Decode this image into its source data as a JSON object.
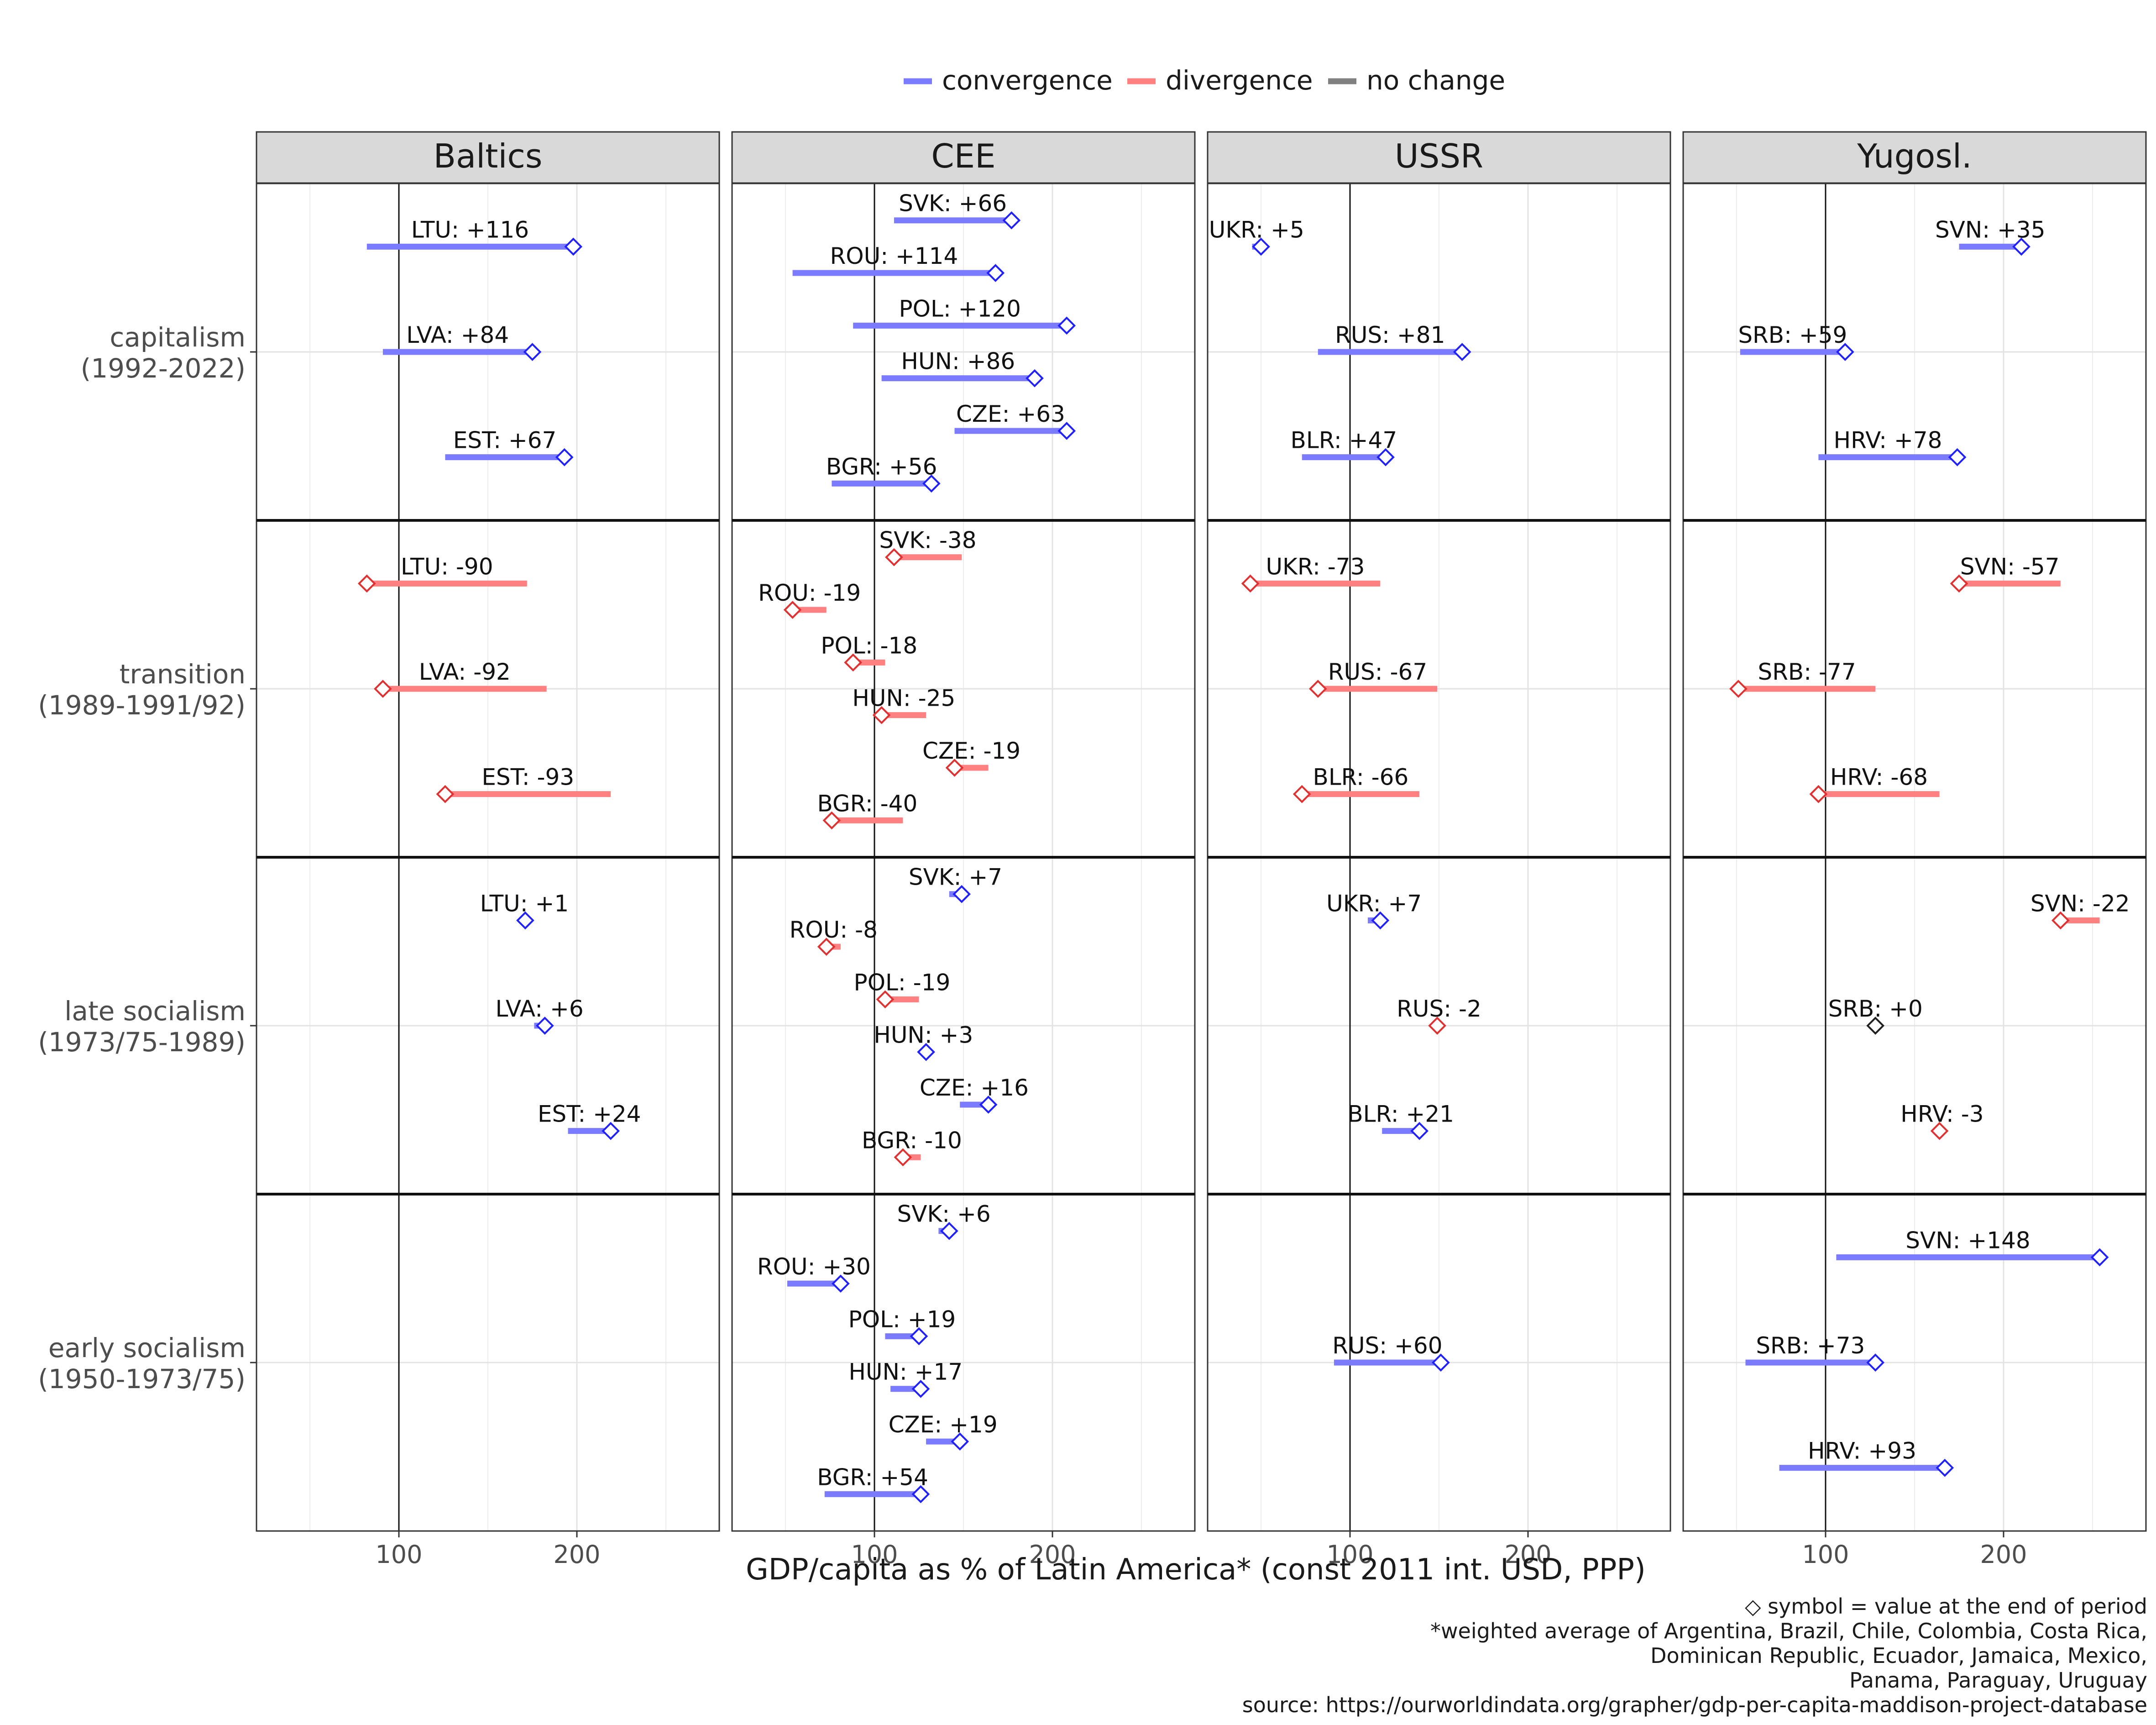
{
  "chart_data": {
    "type": "dumbbell",
    "xlabel": "GDP/capita as % of Latin America* (const 2011 int. USD, PPP)",
    "xticks": [
      100,
      200
    ],
    "xlim": [
      20,
      280
    ],
    "legend": {
      "position": "top",
      "items": [
        {
          "key": "conv",
          "label": "convergence",
          "color": "#7b7bff"
        },
        {
          "key": "div",
          "label": "divergence",
          "color": "#ff8080"
        },
        {
          "key": "none",
          "label": "no change",
          "color": "#808080"
        }
      ]
    },
    "marker_colors": {
      "conv": "#2020ff",
      "div": "#e03030",
      "none": "#202020"
    },
    "footnotes": [
      "◇ symbol = value at the end of period",
      "*weighted average of Argentina, Brazil, Chile, Colombia, Costa Rica,",
      "Dominican Republic, Ecuador, Jamaica, Mexico,",
      "Panama, Paraguay, Uruguay",
      "source: https://ourworldindata.org/grapher/gdp-per-capita-maddison-project-database"
    ],
    "columns": [
      "Baltics",
      "CEE",
      "USSR",
      "Yugosl."
    ],
    "rows": [
      {
        "label1": "capitalism",
        "label2": "(1992-2022)"
      },
      {
        "label1": "transition",
        "label2": "(1989-1991/92)"
      },
      {
        "label1": "late socialism",
        "label2": "(1973/75-1989)"
      },
      {
        "label1": "early socialism",
        "label2": "(1950-1973/75)"
      }
    ],
    "panels": [
      {
        "row": 0,
        "col": 0,
        "items": [
          {
            "label": "LTU: +116",
            "y": 1.5,
            "start": 82,
            "end": 198
          },
          {
            "label": "LVA: +84",
            "y": 0,
            "start": 91,
            "end": 175
          },
          {
            "label": "EST: +67",
            "y": -1.5,
            "start": 126,
            "end": 193
          }
        ]
      },
      {
        "row": 0,
        "col": 1,
        "items": [
          {
            "label": "SVK: +66",
            "y": 1.875,
            "start": 111,
            "end": 177
          },
          {
            "label": "ROU: +114",
            "y": 1.125,
            "start": 54,
            "end": 168
          },
          {
            "label": "POL: +120",
            "y": 0.375,
            "start": 88,
            "end": 208
          },
          {
            "label": "HUN: +86",
            "y": -0.375,
            "start": 104,
            "end": 190
          },
          {
            "label": "CZE: +63",
            "y": -1.125,
            "start": 145,
            "end": 208
          },
          {
            "label": "BGR: +56",
            "y": -1.875,
            "start": 76,
            "end": 132
          }
        ]
      },
      {
        "row": 0,
        "col": 2,
        "items": [
          {
            "label": "UKR: +5",
            "y": 1.5,
            "start": 45,
            "end": 50
          },
          {
            "label": "RUS: +81",
            "y": 0,
            "start": 82,
            "end": 163
          },
          {
            "label": "BLR: +47",
            "y": -1.5,
            "start": 73,
            "end": 120
          }
        ]
      },
      {
        "row": 0,
        "col": 3,
        "items": [
          {
            "label": "SVN: +35",
            "y": 1.5,
            "start": 175,
            "end": 210
          },
          {
            "label": "SRB: +59",
            "y": 0,
            "start": 52,
            "end": 111
          },
          {
            "label": "HRV: +78",
            "y": -1.5,
            "start": 96,
            "end": 174
          }
        ]
      },
      {
        "row": 1,
        "col": 0,
        "items": [
          {
            "label": "LTU: -90",
            "y": 1.5,
            "start": 172,
            "end": 82
          },
          {
            "label": "LVA: -92",
            "y": 0,
            "start": 183,
            "end": 91
          },
          {
            "label": "EST: -93",
            "y": -1.5,
            "start": 219,
            "end": 126
          }
        ]
      },
      {
        "row": 1,
        "col": 1,
        "items": [
          {
            "label": "SVK: -38",
            "y": 1.875,
            "start": 149,
            "end": 111
          },
          {
            "label": "ROU: -19",
            "y": 1.125,
            "start": 73,
            "end": 54
          },
          {
            "label": "POL: -18",
            "y": 0.375,
            "start": 106,
            "end": 88
          },
          {
            "label": "HUN: -25",
            "y": -0.375,
            "start": 129,
            "end": 104
          },
          {
            "label": "CZE: -19",
            "y": -1.125,
            "start": 164,
            "end": 145
          },
          {
            "label": "BGR: -40",
            "y": -1.875,
            "start": 116,
            "end": 76
          }
        ]
      },
      {
        "row": 1,
        "col": 2,
        "items": [
          {
            "label": "UKR: -73",
            "y": 1.5,
            "start": 117,
            "end": 44
          },
          {
            "label": "RUS: -67",
            "y": 0,
            "start": 149,
            "end": 82
          },
          {
            "label": "BLR: -66",
            "y": -1.5,
            "start": 139,
            "end": 73
          }
        ]
      },
      {
        "row": 1,
        "col": 3,
        "items": [
          {
            "label": "SVN: -57",
            "y": 1.5,
            "start": 232,
            "end": 175
          },
          {
            "label": "SRB: -77",
            "y": 0,
            "start": 128,
            "end": 51
          },
          {
            "label": "HRV: -68",
            "y": -1.5,
            "start": 164,
            "end": 96
          }
        ]
      },
      {
        "row": 2,
        "col": 0,
        "items": [
          {
            "label": "LTU: +1",
            "y": 1.5,
            "start": 170,
            "end": 171
          },
          {
            "label": "LVA: +6",
            "y": 0,
            "start": 176,
            "end": 182
          },
          {
            "label": "EST: +24",
            "y": -1.5,
            "start": 195,
            "end": 219
          }
        ]
      },
      {
        "row": 2,
        "col": 1,
        "items": [
          {
            "label": "SVK: +7",
            "y": 1.875,
            "start": 142,
            "end": 149
          },
          {
            "label": "ROU: -8",
            "y": 1.125,
            "start": 81,
            "end": 73
          },
          {
            "label": "POL: -19",
            "y": 0.375,
            "start": 125,
            "end": 106
          },
          {
            "label": "HUN: +3",
            "y": -0.375,
            "start": 126,
            "end": 129
          },
          {
            "label": "CZE: +16",
            "y": -1.125,
            "start": 148,
            "end": 164
          },
          {
            "label": "BGR: -10",
            "y": -1.875,
            "start": 126,
            "end": 116
          }
        ]
      },
      {
        "row": 2,
        "col": 2,
        "items": [
          {
            "label": "UKR: +7",
            "y": 1.5,
            "start": 110,
            "end": 117
          },
          {
            "label": "RUS: -2",
            "y": 0,
            "start": 151,
            "end": 149
          },
          {
            "label": "BLR: +21",
            "y": -1.5,
            "start": 118,
            "end": 139
          }
        ]
      },
      {
        "row": 2,
        "col": 3,
        "items": [
          {
            "label": "SVN: -22",
            "y": 1.5,
            "start": 254,
            "end": 232
          },
          {
            "label": "SRB: +0",
            "y": 0,
            "start": 128,
            "end": 128
          },
          {
            "label": "HRV: -3",
            "y": -1.5,
            "start": 167,
            "end": 164
          }
        ]
      },
      {
        "row": 3,
        "col": 1,
        "items": [
          {
            "label": "SVK: +6",
            "y": 1.875,
            "start": 136,
            "end": 142
          },
          {
            "label": "ROU: +30",
            "y": 1.125,
            "start": 51,
            "end": 81
          },
          {
            "label": "POL: +19",
            "y": 0.375,
            "start": 106,
            "end": 125
          },
          {
            "label": "HUN: +17",
            "y": -0.375,
            "start": 109,
            "end": 126
          },
          {
            "label": "CZE: +19",
            "y": -1.125,
            "start": 129,
            "end": 148
          },
          {
            "label": "BGR: +54",
            "y": -1.875,
            "start": 72,
            "end": 126
          }
        ]
      },
      {
        "row": 3,
        "col": 2,
        "items": [
          {
            "label": "RUS: +60",
            "y": 0,
            "start": 91,
            "end": 151
          }
        ]
      },
      {
        "row": 3,
        "col": 3,
        "items": [
          {
            "label": "SVN: +148",
            "y": 1.5,
            "start": 106,
            "end": 254
          },
          {
            "label": "SRB: +73",
            "y": 0,
            "start": 55,
            "end": 128
          },
          {
            "label": "HRV: +93",
            "y": -1.5,
            "start": 74,
            "end": 167
          }
        ]
      }
    ]
  }
}
